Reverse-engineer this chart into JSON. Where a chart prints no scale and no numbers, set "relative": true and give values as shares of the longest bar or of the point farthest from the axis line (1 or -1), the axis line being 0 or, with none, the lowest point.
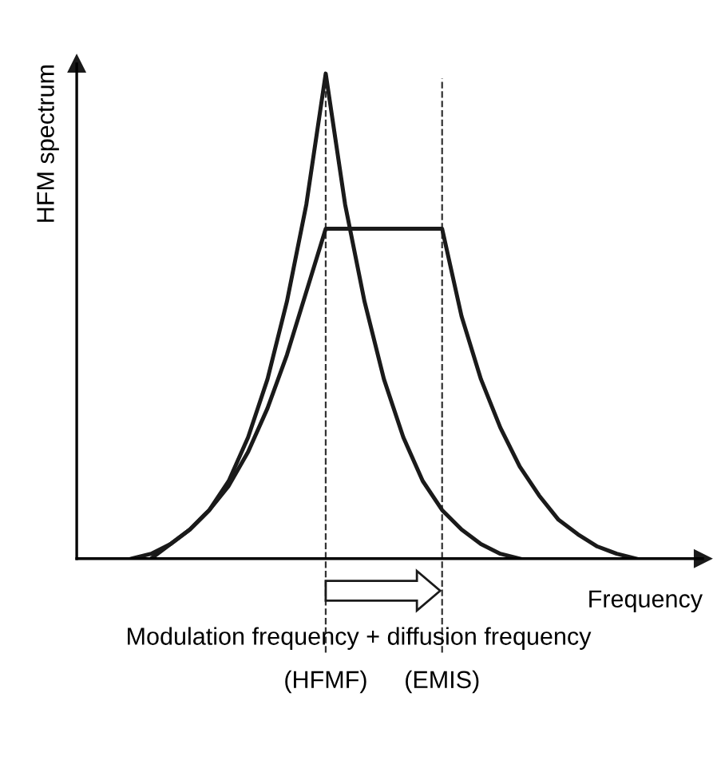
{
  "chart_data": {
    "type": "line",
    "relative": true,
    "xlabel": "Frequency",
    "ylabel": "HFM spectrum",
    "categories": [
      null,
      null,
      null,
      null,
      null,
      null,
      null,
      null,
      null,
      null,
      null,
      null,
      null,
      null,
      null,
      null,
      null,
      null,
      null,
      null,
      null,
      null,
      null,
      null,
      null,
      null,
      null
    ],
    "series": [
      {
        "color": "#1a1a1a",
        "values": [
          0,
          0.01,
          0.03,
          0.06,
          0.1,
          0.16,
          0.25,
          0.37,
          0.53,
          0.73,
          1,
          0.73,
          0.53,
          0.37,
          0.25,
          0.16,
          0.1,
          0.06,
          0.03,
          0.01,
          0,
          null,
          null,
          null,
          null,
          null,
          null
        ]
      },
      {
        "color": "#1a1a1a",
        "values": [
          null,
          0,
          0.03,
          0.06,
          0.1,
          0.15,
          0.22,
          0.31,
          0.42,
          0.55,
          0.68,
          0.68,
          0.68,
          0.68,
          0.68,
          0.68,
          0.68,
          0.5,
          0.37,
          0.27,
          0.19,
          0.13,
          0.08,
          0.05,
          0.025,
          0.01,
          0
        ]
      }
    ],
    "annotations": [
      "Modulation frequency + diffusion frequency",
      "(HFMF)",
      "(EMIS)"
    ],
    "legend": false
  }
}
